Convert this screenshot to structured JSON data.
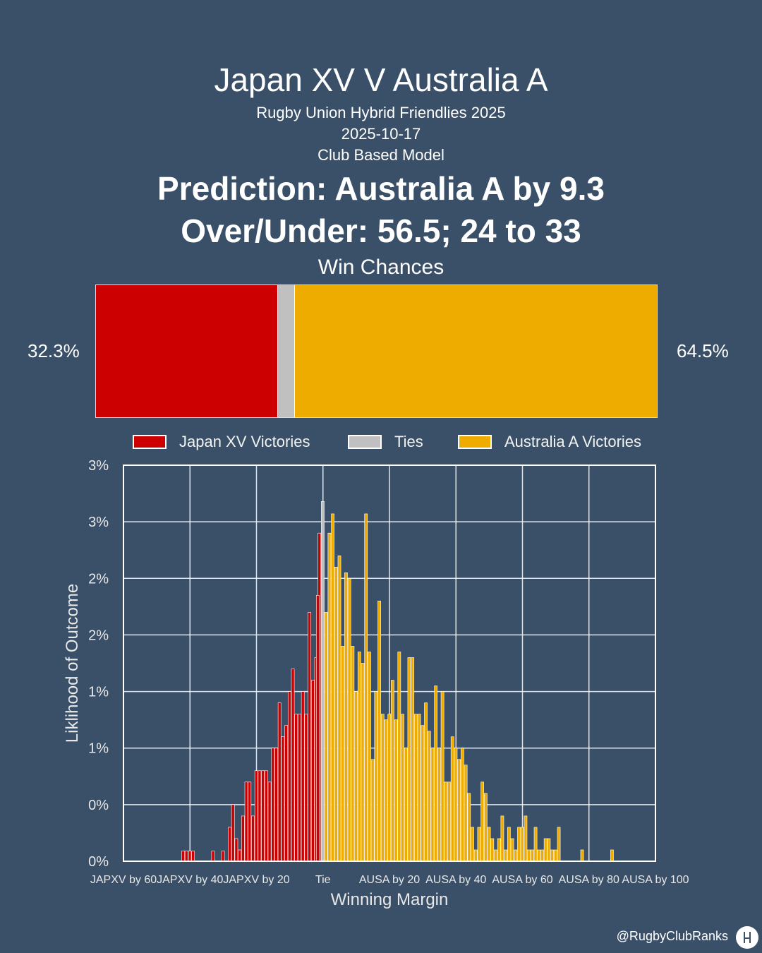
{
  "header": {
    "title": "Japan XV V Australia A",
    "competition": "Rugby Union Hybrid Friendlies 2025",
    "date": "2025-10-17",
    "model": "Club Based Model",
    "prediction": "Prediction: Australia A by 9.3",
    "over_under": "Over/Under: 56.5; 24 to 33"
  },
  "win_chances": {
    "title": "Win Chances",
    "home_pct": 32.3,
    "tie_pct": 3.2,
    "away_pct": 64.5,
    "home_label": "32.3%",
    "away_label": "64.5%"
  },
  "colors": {
    "home": "#cc0000",
    "tie": "#c0c0c0",
    "away": "#eeac00",
    "background": "#3a5068"
  },
  "legend": {
    "home": "Japan XV Victories",
    "tie": "Ties",
    "away": "Australia A Victories"
  },
  "chart_data": {
    "type": "bar",
    "xlabel": "Winning Margin",
    "ylabel": "Liklihood of Outcome",
    "xlim": [
      -60,
      100
    ],
    "ylim": [
      0,
      3.5
    ],
    "x_ticks": [
      {
        "value": -60,
        "label": "JAPXV by 60"
      },
      {
        "value": -40,
        "label": "JAPXV by 40"
      },
      {
        "value": -20,
        "label": "JAPXV by 20"
      },
      {
        "value": 0,
        "label": "Tie"
      },
      {
        "value": 20,
        "label": "AUSA by 20"
      },
      {
        "value": 40,
        "label": "AUSA by 40"
      },
      {
        "value": 60,
        "label": "AUSA by 60"
      },
      {
        "value": 80,
        "label": "AUSA by 80"
      },
      {
        "value": 100,
        "label": "AUSA by 100"
      }
    ],
    "y_ticks": [
      {
        "value": 0,
        "label": "0%"
      },
      {
        "value": 0.5,
        "label": "0%"
      },
      {
        "value": 1.0,
        "label": "1%"
      },
      {
        "value": 1.5,
        "label": "1%"
      },
      {
        "value": 2.0,
        "label": "2%"
      },
      {
        "value": 2.5,
        "label": "2%"
      },
      {
        "value": 3.0,
        "label": "3%"
      },
      {
        "value": 3.5,
        "label": "3%"
      }
    ],
    "grid": true,
    "series": [
      {
        "name": "Japan XV Victories",
        "color": "#cc0000",
        "points": [
          [
            -42,
            0.09
          ],
          [
            -41,
            0.09
          ],
          [
            -40,
            0.09
          ],
          [
            -39,
            0.09
          ],
          [
            -33,
            0.09
          ],
          [
            -30,
            0.09
          ],
          [
            -28,
            0.3
          ],
          [
            -27,
            0.5
          ],
          [
            -26,
            0.2
          ],
          [
            -25,
            0.1
          ],
          [
            -24,
            0.4
          ],
          [
            -23,
            0.7
          ],
          [
            -22,
            0.7
          ],
          [
            -21,
            0.4
          ],
          [
            -20,
            0.8
          ],
          [
            -19,
            0.8
          ],
          [
            -18,
            0.8
          ],
          [
            -17,
            0.8
          ],
          [
            -16,
            0.7
          ],
          [
            -15,
            1.0
          ],
          [
            -14,
            1.0
          ],
          [
            -13,
            1.4
          ],
          [
            -12,
            1.1
          ],
          [
            -11,
            1.2
          ],
          [
            -10,
            1.5
          ],
          [
            -9,
            1.7
          ],
          [
            -8,
            1.3
          ],
          [
            -7,
            1.3
          ],
          [
            -6,
            1.5
          ],
          [
            -5,
            1.3
          ],
          [
            -4,
            2.2
          ],
          [
            -3,
            1.6
          ],
          [
            -2,
            1.8
          ],
          [
            -1,
            2.9
          ],
          [
            -1.5,
            2.35
          ]
        ]
      },
      {
        "name": "Ties",
        "color": "#c0c0c0",
        "points": [
          [
            0,
            3.18
          ]
        ]
      },
      {
        "name": "Australia A Victories",
        "color": "#eeac00",
        "points": [
          [
            1,
            2.2
          ],
          [
            2,
            2.9
          ],
          [
            3,
            3.07
          ],
          [
            4,
            2.6
          ],
          [
            5,
            2.7
          ],
          [
            6,
            1.9
          ],
          [
            7,
            2.55
          ],
          [
            8,
            2.5
          ],
          [
            9,
            1.9
          ],
          [
            10,
            1.5
          ],
          [
            11,
            1.85
          ],
          [
            12,
            1.75
          ],
          [
            13,
            3.07
          ],
          [
            14,
            1.85
          ],
          [
            15,
            0.9
          ],
          [
            16,
            1.5
          ],
          [
            17,
            2.3
          ],
          [
            18,
            1.3
          ],
          [
            19,
            1.25
          ],
          [
            20,
            1.3
          ],
          [
            21,
            1.6
          ],
          [
            22,
            1.25
          ],
          [
            23,
            1.85
          ],
          [
            24,
            1.3
          ],
          [
            25,
            1.0
          ],
          [
            26,
            1.8
          ],
          [
            27,
            1.8
          ],
          [
            28,
            1.3
          ],
          [
            29,
            1.3
          ],
          [
            30,
            1.2
          ],
          [
            31,
            1.4
          ],
          [
            32,
            1.15
          ],
          [
            33,
            1.0
          ],
          [
            34,
            1.55
          ],
          [
            35,
            1.0
          ],
          [
            36,
            1.5
          ],
          [
            37,
            0.7
          ],
          [
            38,
            0.7
          ],
          [
            39,
            1.1
          ],
          [
            40,
            1.0
          ],
          [
            41,
            0.9
          ],
          [
            42,
            1.0
          ],
          [
            43,
            0.85
          ],
          [
            44,
            0.6
          ],
          [
            45,
            0.3
          ],
          [
            46,
            0.1
          ],
          [
            47,
            0.3
          ],
          [
            48,
            0.7
          ],
          [
            49,
            0.6
          ],
          [
            50,
            0.3
          ],
          [
            51,
            0.2
          ],
          [
            52,
            0.1
          ],
          [
            53,
            0.2
          ],
          [
            54,
            0.4
          ],
          [
            55,
            0.1
          ],
          [
            56,
            0.3
          ],
          [
            57,
            0.2
          ],
          [
            58,
            0.1
          ],
          [
            59,
            0.3
          ],
          [
            60,
            0.3
          ],
          [
            61,
            0.4
          ],
          [
            62,
            0.1
          ],
          [
            63,
            0.1
          ],
          [
            64,
            0.3
          ],
          [
            65,
            0.1
          ],
          [
            66,
            0.1
          ],
          [
            67,
            0.2
          ],
          [
            68,
            0.2
          ],
          [
            69,
            0.1
          ],
          [
            70,
            0.1
          ],
          [
            71,
            0.3
          ],
          [
            78,
            0.1
          ],
          [
            87,
            0.1
          ]
        ]
      }
    ]
  },
  "footer": {
    "handle": "@RugbyClubRanks"
  }
}
